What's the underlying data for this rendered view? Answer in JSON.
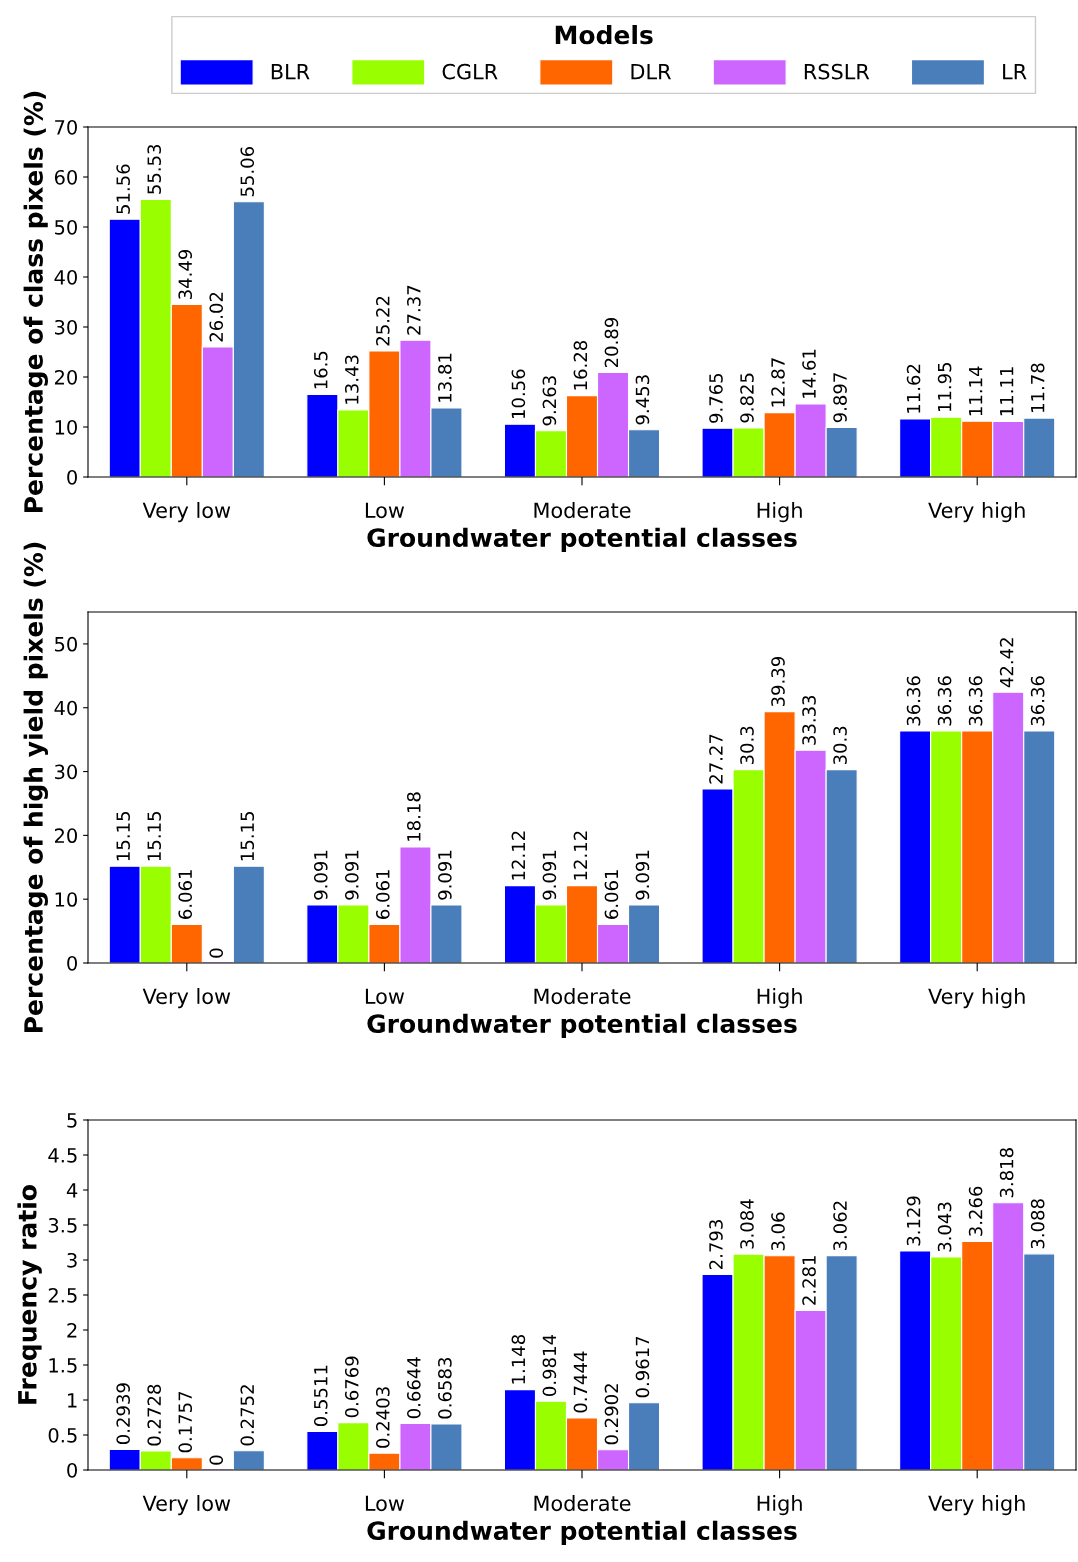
{
  "chart_data": [
    {
      "type": "bar",
      "xlabel": "Groundwater potential classes",
      "ylabel": "Percentage of class pixels (%)",
      "legend_title": "Models",
      "legend": "top",
      "data_labels": true,
      "grid": false,
      "categories": [
        "Very low",
        "Low",
        "Moderate",
        "High",
        "Very high"
      ],
      "ylim": [
        0,
        70
      ],
      "yticks": [
        0,
        10,
        20,
        30,
        40,
        50,
        60,
        70
      ],
      "series": [
        {
          "name": "BLR",
          "color": "#0000ff",
          "values": [
            51.56,
            16.5,
            10.56,
            9.765,
            11.62
          ]
        },
        {
          "name": "CGLR",
          "color": "#99ff00",
          "values": [
            55.53,
            13.43,
            9.263,
            9.825,
            11.95
          ]
        },
        {
          "name": "DLR",
          "color": "#ff6600",
          "values": [
            34.49,
            25.22,
            16.28,
            12.87,
            11.14
          ]
        },
        {
          "name": "RSSLR",
          "color": "#cc66ff",
          "values": [
            26.02,
            27.37,
            20.89,
            14.61,
            11.11
          ]
        },
        {
          "name": "LR",
          "color": "#4a7ebb",
          "values": [
            55.06,
            13.81,
            9.453,
            9.897,
            11.78
          ]
        }
      ]
    },
    {
      "type": "bar",
      "xlabel": "Groundwater potential classes",
      "ylabel": "Percentage of high yield pixels (%)",
      "data_labels": true,
      "grid": false,
      "categories": [
        "Very low",
        "Low",
        "Moderate",
        "High",
        "Very high"
      ],
      "ylim": [
        0,
        55
      ],
      "yticks": [
        0,
        10,
        20,
        30,
        40,
        50
      ],
      "series": [
        {
          "color": "#0000ff",
          "values": [
            15.15,
            9.091,
            12.12,
            27.27,
            36.36
          ]
        },
        {
          "color": "#99ff00",
          "values": [
            15.15,
            9.091,
            9.091,
            30.3,
            36.36
          ]
        },
        {
          "color": "#ff6600",
          "values": [
            6.061,
            6.061,
            12.12,
            39.39,
            36.36
          ]
        },
        {
          "color": "#cc66ff",
          "values": [
            0,
            18.18,
            6.061,
            33.33,
            42.42
          ]
        },
        {
          "color": "#4a7ebb",
          "values": [
            15.15,
            9.091,
            9.091,
            30.3,
            36.36
          ]
        }
      ]
    },
    {
      "type": "bar",
      "xlabel": "Groundwater potential classes",
      "ylabel": "Frequency ratio",
      "data_labels": true,
      "grid": false,
      "categories": [
        "Very low",
        "Low",
        "Moderate",
        "High",
        "Very high"
      ],
      "ylim": [
        0,
        5
      ],
      "yticks": [
        0,
        0.5,
        1,
        1.5,
        2,
        2.5,
        3,
        3.5,
        4,
        4.5,
        5
      ],
      "series": [
        {
          "color": "#0000ff",
          "values": [
            0.2939,
            0.5511,
            1.148,
            2.793,
            3.129
          ]
        },
        {
          "color": "#99ff00",
          "values": [
            0.2728,
            0.6769,
            0.9814,
            3.084,
            3.043
          ]
        },
        {
          "color": "#ff6600",
          "values": [
            0.1757,
            0.2403,
            0.7444,
            3.06,
            3.266
          ]
        },
        {
          "color": "#cc66ff",
          "values": [
            0,
            0.6644,
            0.2902,
            2.281,
            3.818
          ]
        },
        {
          "color": "#4a7ebb",
          "values": [
            0.2752,
            0.6583,
            0.9617,
            3.062,
            3.088
          ]
        }
      ]
    }
  ]
}
